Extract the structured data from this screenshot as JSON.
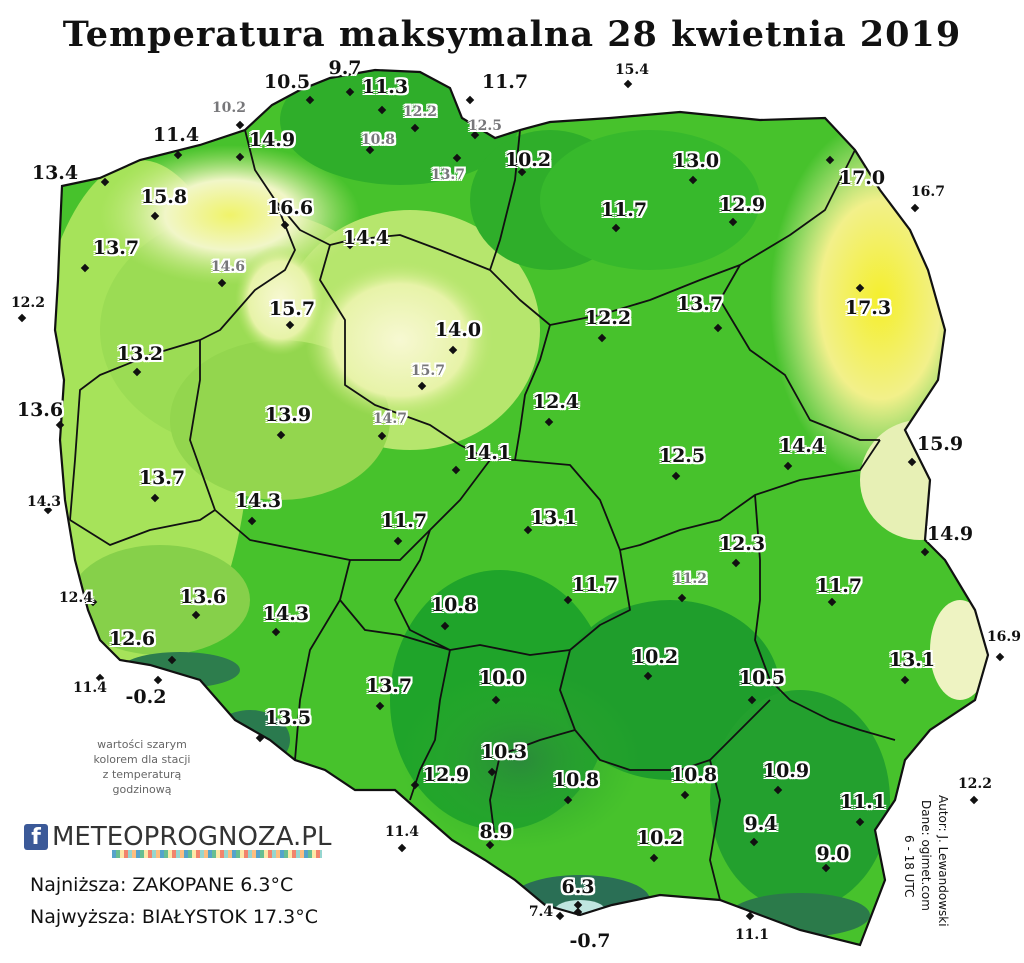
{
  "title": "Temperatura maksymalna 28 kwietnia 2019",
  "colors": {
    "coolest": "#1e6e45",
    "cool": "#22a822",
    "mid": "#55c92d",
    "mild": "#a6e35a",
    "warm": "#f3f7c4",
    "hot": "#f4f03a",
    "border": "#111111"
  },
  "stations": [
    {
      "v": "9.7"
    },
    {
      "v": "10.5"
    },
    {
      "v": "11.3"
    },
    {
      "v": "11.7"
    },
    {
      "v": "15.4"
    },
    {
      "v": "10.2"
    },
    {
      "v": "12.2"
    },
    {
      "v": "10.8"
    },
    {
      "v": "12.5"
    },
    {
      "v": "11.4"
    },
    {
      "v": "14.9"
    },
    {
      "v": "13.4"
    },
    {
      "v": "13.7"
    },
    {
      "v": "10.2"
    },
    {
      "v": "13.0"
    },
    {
      "v": "17.0"
    },
    {
      "v": "16.7"
    },
    {
      "v": "15.8"
    },
    {
      "v": "16.6"
    },
    {
      "v": "11.7"
    },
    {
      "v": "12.9"
    },
    {
      "v": "14.4"
    },
    {
      "v": "13.7"
    },
    {
      "v": "14.6"
    },
    {
      "v": "12.2"
    },
    {
      "v": "15.7"
    },
    {
      "v": "14.0"
    },
    {
      "v": "12.2"
    },
    {
      "v": "13.7"
    },
    {
      "v": "17.3"
    },
    {
      "v": "13.2"
    },
    {
      "v": "15.7"
    },
    {
      "v": "13.6"
    },
    {
      "v": "12.4"
    },
    {
      "v": "13.9"
    },
    {
      "v": "14.7"
    },
    {
      "v": "14.1"
    },
    {
      "v": "12.5"
    },
    {
      "v": "14.4"
    },
    {
      "v": "15.9"
    },
    {
      "v": "13.7"
    },
    {
      "v": "14.3"
    },
    {
      "v": "14.3"
    },
    {
      "v": "11.7"
    },
    {
      "v": "13.1"
    },
    {
      "v": "12.3"
    },
    {
      "v": "14.9"
    },
    {
      "v": "11.7"
    },
    {
      "v": "11.2"
    },
    {
      "v": "11.7"
    },
    {
      "v": "12.4"
    },
    {
      "v": "13.6"
    },
    {
      "v": "14.3"
    },
    {
      "v": "10.8"
    },
    {
      "v": "12.6"
    },
    {
      "v": "10.2"
    },
    {
      "v": "16.9"
    },
    {
      "v": "13.1"
    },
    {
      "v": "11.4"
    },
    {
      "v": "-0.2"
    },
    {
      "v": "10.0"
    },
    {
      "v": "10.5"
    },
    {
      "v": "13.7"
    },
    {
      "v": "13.5"
    },
    {
      "v": "10.3"
    },
    {
      "v": "12.9"
    },
    {
      "v": "10.8"
    },
    {
      "v": "10.8"
    },
    {
      "v": "10.9"
    },
    {
      "v": "12.2"
    },
    {
      "v": "11.1"
    },
    {
      "v": "11.4"
    },
    {
      "v": "8.9"
    },
    {
      "v": "9.4"
    },
    {
      "v": "10.2"
    },
    {
      "v": "9.0"
    },
    {
      "v": "6.3"
    },
    {
      "v": "7.4"
    },
    {
      "v": "-0.7"
    },
    {
      "v": "11.1"
    }
  ],
  "note": [
    "wartości szarym",
    "kolorem dla stacji",
    "z temperaturą",
    "godzinową"
  ],
  "logo": {
    "icon": "facebook-icon",
    "text": "METEOPROGNOZA.PL"
  },
  "lowest": "Najniższa: ZAKOPANE 6.3°C",
  "highest": "Najwyższa: BIAŁYSTOK 17.3°C",
  "credits": [
    "Autor: J. Lewandowski",
    "Dane: ogimet.com",
    "6 - 18 UTC"
  ]
}
